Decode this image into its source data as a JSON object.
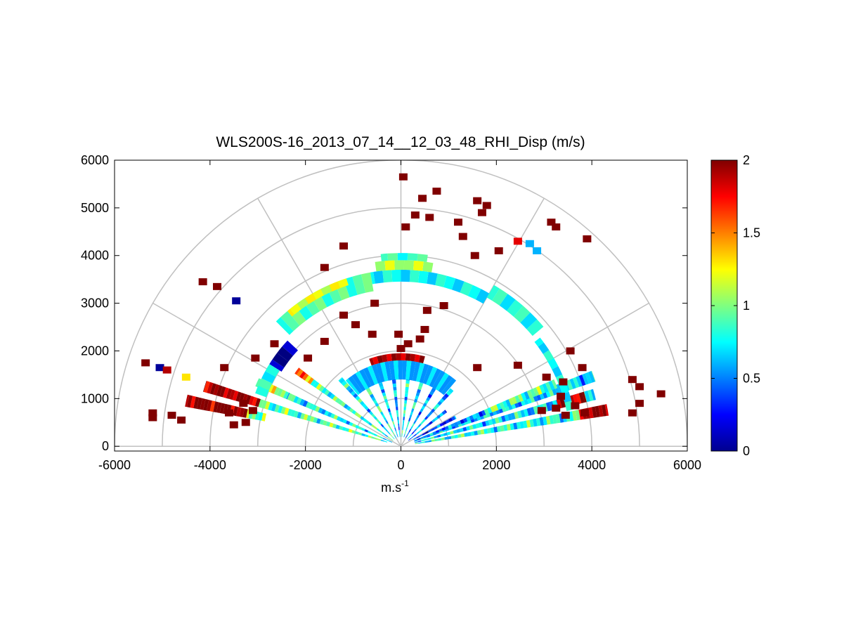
{
  "chart_data": {
    "type": "heatmap",
    "title": "WLS200S-16_2013_07_14__12_03_48_RHI_Disp (m/s)",
    "xlabel_base": "m.s",
    "xlabel_exp": "-1",
    "ylabel": "",
    "xlim": [
      -6000,
      6000
    ],
    "ylim": [
      -100,
      6000
    ],
    "x_ticks": [
      -6000,
      -4000,
      -2000,
      0,
      2000,
      4000,
      6000
    ],
    "y_ticks": [
      0,
      1000,
      2000,
      3000,
      4000,
      5000,
      6000
    ],
    "polar_grid": {
      "rings": [
        1000,
        2000,
        3000,
        4000,
        5000,
        6000
      ],
      "spokes_deg": [
        0,
        30,
        60,
        90,
        120,
        150,
        180
      ],
      "grid": true
    },
    "colorbar": {
      "colormap": "jet",
      "range": [
        0,
        2
      ],
      "ticks": [
        0,
        0.5,
        1,
        1.5,
        2
      ]
    },
    "rays": [
      {
        "az": 10,
        "r": [
          [
            300,
            3800,
            0.8
          ],
          [
            3800,
            4400,
            2.0
          ]
        ]
      },
      {
        "az": 15,
        "r": [
          [
            300,
            4200,
            0.7
          ],
          [
            3400,
            4000,
            1.9
          ]
        ]
      },
      {
        "az": 20,
        "r": [
          [
            300,
            4300,
            0.65
          ]
        ]
      },
      {
        "az": 22,
        "r": [
          [
            300,
            1900,
            0.5
          ],
          [
            1900,
            3500,
            0.9
          ]
        ]
      },
      {
        "az": 28,
        "r": [
          [
            300,
            1300,
            0.35
          ]
        ]
      },
      {
        "az": 38,
        "r": [
          [
            200,
            1200,
            0.5
          ]
        ]
      },
      {
        "az": 48,
        "r": [
          [
            200,
            1600,
            0.6
          ]
        ]
      },
      {
        "az": 60,
        "r": [
          [
            200,
            1500,
            0.55
          ]
        ]
      },
      {
        "az": 72,
        "r": [
          [
            200,
            1400,
            0.7
          ]
        ]
      },
      {
        "az": 84,
        "r": [
          [
            200,
            1700,
            0.75
          ]
        ]
      },
      {
        "az": 96,
        "r": [
          [
            200,
            1600,
            0.6
          ]
        ]
      },
      {
        "az": 108,
        "r": [
          [
            200,
            1700,
            0.7
          ]
        ]
      },
      {
        "az": 120,
        "r": [
          [
            200,
            1800,
            0.8
          ]
        ]
      },
      {
        "az": 132,
        "r": [
          [
            200,
            1900,
            0.7
          ]
        ]
      },
      {
        "az": 144,
        "r": [
          [
            200,
            2300,
            0.85
          ],
          [
            2300,
            2700,
            1.5
          ]
        ]
      },
      {
        "az": 156,
        "r": [
          [
            200,
            2600,
            0.75
          ],
          [
            2600,
            3300,
            1.1
          ]
        ]
      },
      {
        "az": 163,
        "r": [
          [
            300,
            3100,
            0.9
          ],
          [
            3100,
            4300,
            2.0
          ]
        ]
      },
      {
        "az": 168,
        "r": [
          [
            2900,
            3300,
            1.0
          ],
          [
            3300,
            4600,
            2.0
          ]
        ]
      }
    ],
    "bands": [
      {
        "r": [
          3550,
          3700
        ],
        "az": [
          12,
          38
        ],
        "v": 0.75
      },
      {
        "r": [
          3600,
          3900
        ],
        "az": [
          40,
          60
        ],
        "v": 0.8
      },
      {
        "r": [
          3450,
          3700
        ],
        "az": [
          60,
          100
        ],
        "v": 0.75
      },
      {
        "r": [
          3700,
          3900
        ],
        "az": [
          80,
          98
        ],
        "v": 1.1
      },
      {
        "r": [
          3900,
          4050
        ],
        "az": [
          82,
          96
        ],
        "v": 0.85
      },
      {
        "r": [
          3300,
          3700
        ],
        "az": [
          100,
          135
        ],
        "v": 0.9
      },
      {
        "r": [
          3550,
          3700
        ],
        "az": [
          108,
          130
        ],
        "v": 1.2
      },
      {
        "r": [
          2950,
          3250
        ],
        "az": [
          137,
          148
        ],
        "v": 0.05
      },
      {
        "r": [
          3000,
          3250
        ],
        "az": [
          148,
          160
        ],
        "v": 0.8
      },
      {
        "r": [
          1400,
          1800
        ],
        "az": [
          50,
          130
        ],
        "v": 0.6
      },
      {
        "r": [
          1800,
          1950
        ],
        "az": [
          75,
          110
        ],
        "v": 1.9
      }
    ],
    "blocks": [
      {
        "x": 0,
        "y": 2050,
        "v": 2.0
      },
      {
        "x": 150,
        "y": 2150,
        "v": 2.0
      },
      {
        "x": -50,
        "y": 2350,
        "v": 2.0
      },
      {
        "x": 400,
        "y": 2250,
        "v": 2.0
      },
      {
        "x": 500,
        "y": 2450,
        "v": 2.0
      },
      {
        "x": -600,
        "y": 2350,
        "v": 2.0
      },
      {
        "x": -950,
        "y": 2550,
        "v": 2.0
      },
      {
        "x": -1600,
        "y": 2200,
        "v": 2.0
      },
      {
        "x": -2650,
        "y": 2150,
        "v": 2.0
      },
      {
        "x": -3050,
        "y": 1850,
        "v": 2.0
      },
      {
        "x": -3700,
        "y": 1650,
        "v": 2.0
      },
      {
        "x": -1950,
        "y": 1850,
        "v": 2.0
      },
      {
        "x": -1200,
        "y": 2750,
        "v": 2.0
      },
      {
        "x": 550,
        "y": 2850,
        "v": 2.0
      },
      {
        "x": 900,
        "y": 2950,
        "v": 2.0
      },
      {
        "x": -550,
        "y": 3000,
        "v": 2.0
      },
      {
        "x": 100,
        "y": 4600,
        "v": 2.0
      },
      {
        "x": 300,
        "y": 4850,
        "v": 2.0
      },
      {
        "x": 600,
        "y": 4800,
        "v": 2.0
      },
      {
        "x": 1200,
        "y": 4700,
        "v": 2.0
      },
      {
        "x": 1700,
        "y": 4900,
        "v": 2.0
      },
      {
        "x": -1200,
        "y": 4200,
        "v": 2.0
      },
      {
        "x": 450,
        "y": 5200,
        "v": 2.0
      },
      {
        "x": 750,
        "y": 5350,
        "v": 2.0
      },
      {
        "x": 1600,
        "y": 5150,
        "v": 2.0
      },
      {
        "x": 1800,
        "y": 5050,
        "v": 2.0
      },
      {
        "x": 50,
        "y": 5650,
        "v": 2.0
      },
      {
        "x": 1300,
        "y": 4400,
        "v": 2.0
      },
      {
        "x": 2050,
        "y": 4100,
        "v": 2.0
      },
      {
        "x": 3150,
        "y": 4700,
        "v": 2.0
      },
      {
        "x": 3250,
        "y": 4600,
        "v": 2.0
      },
      {
        "x": 3900,
        "y": 4350,
        "v": 2.0
      },
      {
        "x": -4150,
        "y": 3450,
        "v": 2.0
      },
      {
        "x": -3850,
        "y": 3350,
        "v": 2.0
      },
      {
        "x": -5350,
        "y": 1750,
        "v": 2.0
      },
      {
        "x": -5050,
        "y": 1650,
        "v": 0.05
      },
      {
        "x": -4900,
        "y": 1600,
        "v": 1.9
      },
      {
        "x": -4500,
        "y": 1450,
        "v": 1.3
      },
      {
        "x": -5200,
        "y": 700,
        "v": 2.0
      },
      {
        "x": -5200,
        "y": 600,
        "v": 2.0
      },
      {
        "x": -4800,
        "y": 650,
        "v": 2.0
      },
      {
        "x": -4600,
        "y": 550,
        "v": 2.0
      },
      {
        "x": -3600,
        "y": 700,
        "v": 2.0
      },
      {
        "x": -3300,
        "y": 900,
        "v": 2.0
      },
      {
        "x": -3100,
        "y": 750,
        "v": 2.0
      },
      {
        "x": -3500,
        "y": 450,
        "v": 2.0
      },
      {
        "x": -3250,
        "y": 500,
        "v": 2.0
      },
      {
        "x": 3250,
        "y": 800,
        "v": 2.0
      },
      {
        "x": 3450,
        "y": 650,
        "v": 2.0
      },
      {
        "x": 3650,
        "y": 850,
        "v": 2.0
      },
      {
        "x": 3850,
        "y": 700,
        "v": 2.0
      },
      {
        "x": 2950,
        "y": 750,
        "v": 2.0
      },
      {
        "x": 3350,
        "y": 1050,
        "v": 2.0
      },
      {
        "x": 4850,
        "y": 1400,
        "v": 2.0
      },
      {
        "x": 5000,
        "y": 1250,
        "v": 2.0
      },
      {
        "x": 5450,
        "y": 1100,
        "v": 2.0
      },
      {
        "x": 5000,
        "y": 900,
        "v": 2.0
      },
      {
        "x": 4850,
        "y": 700,
        "v": 2.0
      },
      {
        "x": 3800,
        "y": 1650,
        "v": 2.0
      },
      {
        "x": 3400,
        "y": 1350,
        "v": 2.0
      },
      {
        "x": 3050,
        "y": 1450,
        "v": 2.0
      },
      {
        "x": 3550,
        "y": 2000,
        "v": 2.0
      },
      {
        "x": 2450,
        "y": 1700,
        "v": 2.0
      },
      {
        "x": 1600,
        "y": 1650,
        "v": 2.0
      },
      {
        "x": -3450,
        "y": 3050,
        "v": 0.05
      },
      {
        "x": 2700,
        "y": 4250,
        "v": 0.6
      },
      {
        "x": 2850,
        "y": 4100,
        "v": 0.6
      },
      {
        "x": 2450,
        "y": 4300,
        "v": 1.8
      },
      {
        "x": 1550,
        "y": 4000,
        "v": 2.0
      },
      {
        "x": -1600,
        "y": 3750,
        "v": 2.0
      }
    ]
  }
}
